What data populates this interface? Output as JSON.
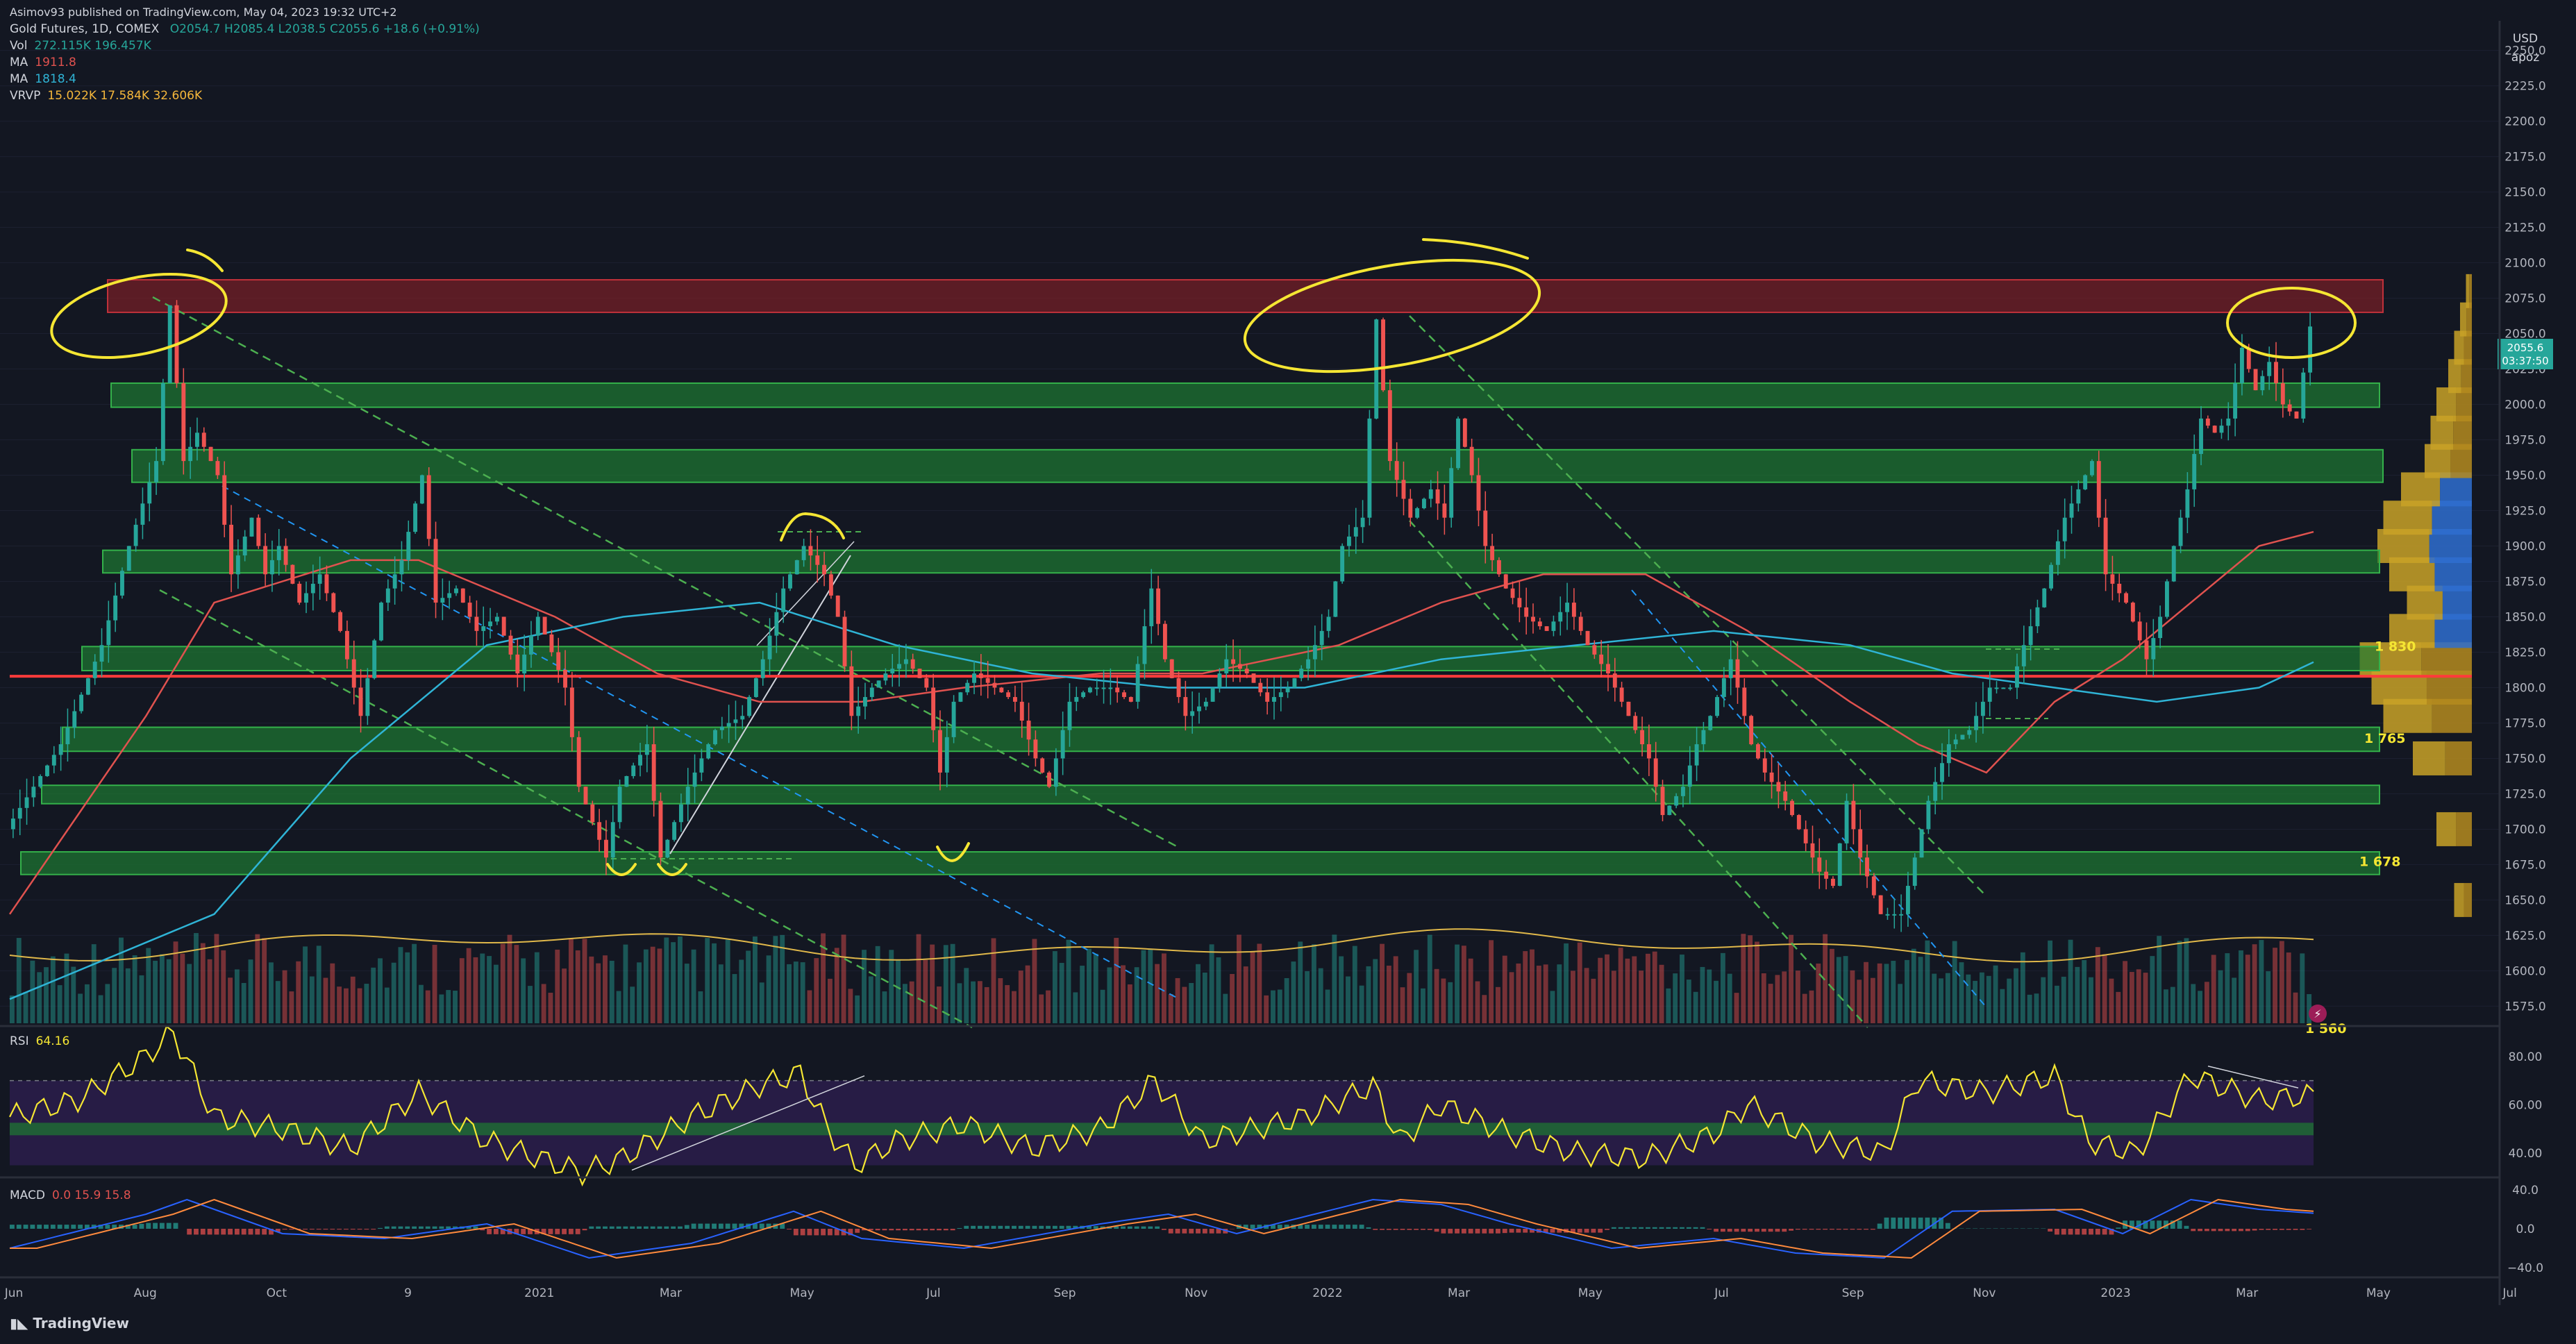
{
  "header": {
    "publisher": "Asimov93 published on TradingView.com, May 04, 2023 19:32 UTC+2",
    "symbol": "Gold Futures, 1D, COMEX",
    "ohlc": "O2054.7 H2085.4 L2038.5 C2055.6 +18.6 (+0.91%)",
    "vol_label": "Vol",
    "vol_values": "272.115K  196.457K",
    "ma1_label": "MA",
    "ma1_value": "1911.8",
    "ma2_label": "MA",
    "ma2_value": "1818.4",
    "vrvp_label": "VRVP",
    "vrvp_values": "15.022K  17.584K  32.606K"
  },
  "price_axis": {
    "currency": "USD",
    "subtitle": "apoz",
    "last_price": "2055.6",
    "countdown": "03:37:50"
  },
  "rsi_label": "RSI",
  "rsi_value": "64.16",
  "macd_label": "MACD",
  "macd_values": "0.0  15.9  15.8",
  "footer": "TradingView",
  "colors": {
    "background": "#131722",
    "bull": "#26a69a",
    "bear": "#ef5350",
    "zone_green": "#1e7a32",
    "zone_red": "#7a1f26",
    "annotation": "#f5e633",
    "ma_fast": "#e0524f",
    "ma_slow": "#2fb4d6",
    "rsi": "#f5e633",
    "rsi_band": "#2a1d49"
  },
  "chart_data": {
    "type": "candlestick",
    "title": "Gold Futures, 1D, COMEX",
    "x_ticks": [
      "Jun",
      "Aug",
      "Oct",
      "9",
      "2021",
      "Mar",
      "May",
      "Jul",
      "Sep",
      "Nov",
      "2022",
      "Mar",
      "May",
      "Jul",
      "Sep",
      "Nov",
      "2023",
      "Mar",
      "May",
      "Jul"
    ],
    "y_ticks": [
      1575,
      1600,
      1625,
      1650,
      1675,
      1700,
      1725,
      1750,
      1775,
      1800,
      1825,
      1850,
      1875,
      1900,
      1925,
      1950,
      1975,
      2000,
      2025,
      2050,
      2075,
      2100,
      2125,
      2150,
      2175,
      2200,
      2225,
      2250
    ],
    "ylim": [
      1560,
      2265
    ],
    "price_path": [
      [
        0,
        1700
      ],
      [
        8,
        1760
      ],
      [
        14,
        1830
      ],
      [
        18,
        1900
      ],
      [
        22,
        1960
      ],
      [
        24,
        2070
      ],
      [
        26,
        1960
      ],
      [
        28,
        1980
      ],
      [
        31,
        1950
      ],
      [
        33,
        1880
      ],
      [
        36,
        1920
      ],
      [
        38,
        1880
      ],
      [
        40,
        1900
      ],
      [
        43,
        1860
      ],
      [
        46,
        1880
      ],
      [
        49,
        1840
      ],
      [
        52,
        1780
      ],
      [
        55,
        1860
      ],
      [
        58,
        1890
      ],
      [
        61,
        1950
      ],
      [
        63,
        1860
      ],
      [
        66,
        1870
      ],
      [
        69,
        1840
      ],
      [
        72,
        1850
      ],
      [
        75,
        1810
      ],
      [
        78,
        1850
      ],
      [
        82,
        1800
      ],
      [
        84,
        1730
      ],
      [
        88,
        1680
      ],
      [
        90,
        1730
      ],
      [
        94,
        1760
      ],
      [
        96,
        1680
      ],
      [
        100,
        1730
      ],
      [
        104,
        1770
      ],
      [
        108,
        1780
      ],
      [
        111,
        1820
      ],
      [
        114,
        1870
      ],
      [
        117,
        1900
      ],
      [
        120,
        1880
      ],
      [
        122,
        1850
      ],
      [
        124,
        1780
      ],
      [
        127,
        1800
      ],
      [
        129,
        1810
      ],
      [
        132,
        1820
      ],
      [
        135,
        1800
      ],
      [
        137,
        1740
      ],
      [
        139,
        1790
      ],
      [
        142,
        1810
      ],
      [
        145,
        1800
      ],
      [
        148,
        1790
      ],
      [
        151,
        1750
      ],
      [
        153,
        1730
      ],
      [
        156,
        1790
      ],
      [
        159,
        1800
      ],
      [
        162,
        1800
      ],
      [
        165,
        1790
      ],
      [
        168,
        1870
      ],
      [
        170,
        1820
      ],
      [
        173,
        1780
      ],
      [
        176,
        1790
      ],
      [
        179,
        1820
      ],
      [
        182,
        1810
      ],
      [
        185,
        1790
      ],
      [
        188,
        1800
      ],
      [
        191,
        1820
      ],
      [
        194,
        1850
      ],
      [
        196,
        1900
      ],
      [
        199,
        1920
      ],
      [
        201,
        2060
      ],
      [
        203,
        1960
      ],
      [
        206,
        1920
      ],
      [
        209,
        1940
      ],
      [
        211,
        1920
      ],
      [
        213,
        1990
      ],
      [
        215,
        1950
      ],
      [
        217,
        1900
      ],
      [
        220,
        1870
      ],
      [
        223,
        1850
      ],
      [
        226,
        1840
      ],
      [
        229,
        1860
      ],
      [
        232,
        1830
      ],
      [
        235,
        1810
      ],
      [
        238,
        1780
      ],
      [
        241,
        1750
      ],
      [
        243,
        1710
      ],
      [
        246,
        1730
      ],
      [
        248,
        1760
      ],
      [
        250,
        1780
      ],
      [
        253,
        1820
      ],
      [
        256,
        1760
      ],
      [
        258,
        1740
      ],
      [
        261,
        1720
      ],
      [
        263,
        1700
      ],
      [
        266,
        1670
      ],
      [
        268,
        1660
      ],
      [
        270,
        1720
      ],
      [
        272,
        1680
      ],
      [
        275,
        1640
      ],
      [
        278,
        1640
      ],
      [
        280,
        1680
      ],
      [
        282,
        1720
      ],
      [
        285,
        1760
      ],
      [
        288,
        1770
      ],
      [
        291,
        1800
      ],
      [
        294,
        1800
      ],
      [
        296,
        1830
      ],
      [
        299,
        1870
      ],
      [
        302,
        1920
      ],
      [
        304,
        1940
      ],
      [
        306,
        1960
      ],
      [
        308,
        1880
      ],
      [
        311,
        1860
      ],
      [
        314,
        1820
      ],
      [
        316,
        1850
      ],
      [
        318,
        1900
      ],
      [
        320,
        1940
      ],
      [
        322,
        1990
      ],
      [
        324,
        1980
      ],
      [
        326,
        1990
      ],
      [
        328,
        2040
      ],
      [
        330,
        2010
      ],
      [
        332,
        2030
      ],
      [
        334,
        2000
      ],
      [
        336,
        1990
      ],
      [
        338,
        2055
      ]
    ],
    "ma_fast_path": [
      [
        0,
        1640
      ],
      [
        20,
        1780
      ],
      [
        30,
        1860
      ],
      [
        50,
        1890
      ],
      [
        60,
        1890
      ],
      [
        80,
        1850
      ],
      [
        95,
        1810
      ],
      [
        110,
        1790
      ],
      [
        125,
        1790
      ],
      [
        140,
        1800
      ],
      [
        160,
        1810
      ],
      [
        175,
        1810
      ],
      [
        195,
        1830
      ],
      [
        210,
        1860
      ],
      [
        225,
        1880
      ],
      [
        240,
        1880
      ],
      [
        255,
        1840
      ],
      [
        270,
        1790
      ],
      [
        280,
        1760
      ],
      [
        290,
        1740
      ],
      [
        300,
        1790
      ],
      [
        310,
        1820
      ],
      [
        320,
        1860
      ],
      [
        330,
        1900
      ],
      [
        338,
        1910
      ]
    ],
    "ma_slow_path": [
      [
        0,
        1580
      ],
      [
        30,
        1640
      ],
      [
        50,
        1750
      ],
      [
        70,
        1830
      ],
      [
        90,
        1850
      ],
      [
        110,
        1860
      ],
      [
        130,
        1830
      ],
      [
        150,
        1810
      ],
      [
        170,
        1800
      ],
      [
        190,
        1800
      ],
      [
        210,
        1820
      ],
      [
        230,
        1830
      ],
      [
        250,
        1840
      ],
      [
        270,
        1830
      ],
      [
        285,
        1810
      ],
      [
        300,
        1800
      ],
      [
        315,
        1790
      ],
      [
        330,
        1800
      ],
      [
        338,
        1818
      ]
    ],
    "zones": [
      {
        "kind": "resistance",
        "from": 2065,
        "to": 2088
      },
      {
        "kind": "support",
        "from": 1998,
        "to": 2015
      },
      {
        "kind": "support",
        "from": 1945,
        "to": 1968
      },
      {
        "kind": "support",
        "from": 1881,
        "to": 1897
      },
      {
        "kind": "support",
        "from": 1812,
        "to": 1829
      },
      {
        "kind": "support",
        "from": 1755,
        "to": 1772
      },
      {
        "kind": "support",
        "from": 1718,
        "to": 1731
      },
      {
        "kind": "support",
        "from": 1668,
        "to": 1684
      }
    ],
    "red_line": 1808,
    "level_labels": [
      {
        "price": 1830,
        "text": "1 830"
      },
      {
        "price": 1765,
        "text": "1 765"
      },
      {
        "price": 1678,
        "text": "1 678"
      },
      {
        "price": 1560,
        "text": "1 560"
      }
    ],
    "rsi_ticks": [
      40,
      60,
      80
    ],
    "rsi_ylim": [
      30,
      92
    ],
    "rsi_path": [
      [
        0,
        55
      ],
      [
        10,
        62
      ],
      [
        20,
        80
      ],
      [
        24,
        90
      ],
      [
        30,
        55
      ],
      [
        40,
        50
      ],
      [
        50,
        42
      ],
      [
        60,
        65
      ],
      [
        70,
        45
      ],
      [
        84,
        32
      ],
      [
        90,
        38
      ],
      [
        100,
        55
      ],
      [
        110,
        68
      ],
      [
        116,
        73
      ],
      [
        120,
        50
      ],
      [
        124,
        35
      ],
      [
        130,
        45
      ],
      [
        140,
        52
      ],
      [
        150,
        42
      ],
      [
        160,
        50
      ],
      [
        168,
        70
      ],
      [
        175,
        45
      ],
      [
        190,
        55
      ],
      [
        200,
        68
      ],
      [
        204,
        45
      ],
      [
        210,
        60
      ],
      [
        220,
        48
      ],
      [
        230,
        40
      ],
      [
        240,
        38
      ],
      [
        250,
        48
      ],
      [
        255,
        60
      ],
      [
        265,
        45
      ],
      [
        275,
        40
      ],
      [
        280,
        70
      ],
      [
        290,
        65
      ],
      [
        300,
        72
      ],
      [
        305,
        45
      ],
      [
        312,
        40
      ],
      [
        320,
        72
      ],
      [
        330,
        62
      ],
      [
        338,
        64
      ]
    ],
    "macd_ticks": [
      -40,
      0,
      40
    ],
    "macd_ylim": [
      -50,
      50
    ],
    "macd_path": [
      [
        0,
        -20
      ],
      [
        20,
        15
      ],
      [
        26,
        30
      ],
      [
        40,
        -5
      ],
      [
        55,
        -10
      ],
      [
        70,
        5
      ],
      [
        85,
        -30
      ],
      [
        100,
        -15
      ],
      [
        115,
        18
      ],
      [
        125,
        -10
      ],
      [
        140,
        -20
      ],
      [
        160,
        5
      ],
      [
        170,
        15
      ],
      [
        180,
        -5
      ],
      [
        200,
        30
      ],
      [
        210,
        25
      ],
      [
        220,
        5
      ],
      [
        235,
        -20
      ],
      [
        250,
        -10
      ],
      [
        262,
        -25
      ],
      [
        275,
        -30
      ],
      [
        285,
        18
      ],
      [
        300,
        20
      ],
      [
        310,
        -5
      ],
      [
        320,
        30
      ],
      [
        330,
        20
      ],
      [
        338,
        16
      ]
    ],
    "volume_profile": [
      [
        1650,
        0.15
      ],
      [
        1700,
        0.3
      ],
      [
        1750,
        0.5
      ],
      [
        1780,
        0.75
      ],
      [
        1800,
        0.85
      ],
      [
        1820,
        0.95
      ],
      [
        1840,
        0.7
      ],
      [
        1860,
        0.55
      ],
      [
        1880,
        0.7
      ],
      [
        1900,
        0.8
      ],
      [
        1920,
        0.75
      ],
      [
        1940,
        0.6
      ],
      [
        1960,
        0.4
      ],
      [
        1980,
        0.35
      ],
      [
        2000,
        0.3
      ],
      [
        2020,
        0.2
      ],
      [
        2040,
        0.15
      ],
      [
        2060,
        0.1
      ],
      [
        2080,
        0.05
      ]
    ]
  }
}
